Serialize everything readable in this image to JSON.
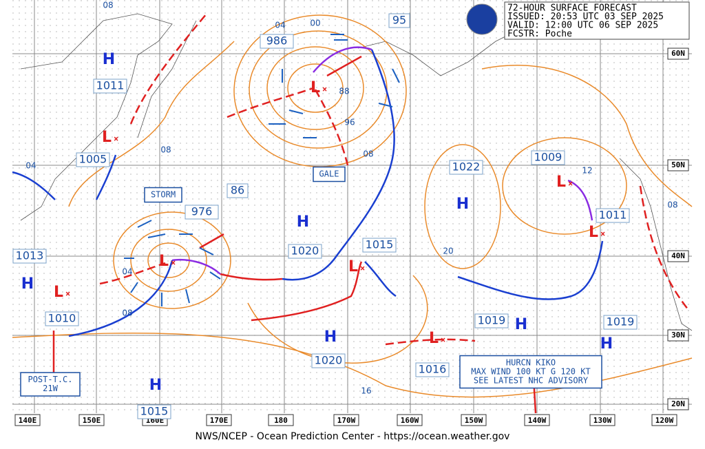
{
  "header": {
    "lines": [
      "72-HOUR SURFACE FORECAST",
      "ISSUED: 20:53 UTC 03 SEP 2025",
      "VALID:  12:00 UTC 06 SEP 2025",
      "FCSTR:  Poche"
    ]
  },
  "footer": "NWS/NCEP - Ocean Prediction Center - https://ocean.weather.gov",
  "lon_labels": [
    "140E",
    "150E",
    "160E",
    "170E",
    "180",
    "170W",
    "160W",
    "150W",
    "140W",
    "130W",
    "120W"
  ],
  "lat_labels": [
    "60N",
    "50N",
    "40N",
    "30N",
    "20N"
  ],
  "centers": [
    {
      "symbol": "H",
      "pressure": "1011"
    },
    {
      "symbol": "L",
      "pressure": "1005"
    },
    {
      "symbol": "L",
      "pressure": "986"
    },
    {
      "symbol": "H",
      "pressure": "1013"
    },
    {
      "symbol": "L",
      "pressure": "1010"
    },
    {
      "symbol": "L",
      "pressure": "976"
    },
    {
      "symbol": "H",
      "pressure": "1020"
    },
    {
      "symbol": "L",
      "pressure": "1015"
    },
    {
      "symbol": "H",
      "pressure": "1022"
    },
    {
      "symbol": "L",
      "pressure": "1009"
    },
    {
      "symbol": "L",
      "pressure": "1011"
    },
    {
      "symbol": "H",
      "pressure": "1019"
    },
    {
      "symbol": "H",
      "pressure": "1019"
    },
    {
      "symbol": "H",
      "pressure": "1020"
    },
    {
      "symbol": "L",
      "pressure": "1016"
    },
    {
      "symbol": "H",
      "pressure": "1015"
    }
  ],
  "forecast_pressures": [
    "95",
    "86"
  ],
  "isobar_labels": [
    "08",
    "04",
    "00",
    "88",
    "96",
    "08",
    "08",
    "04",
    "04",
    "08",
    "20",
    "12",
    "08",
    "16"
  ],
  "boxes": [
    {
      "lines": [
        "STORM"
      ]
    },
    {
      "lines": [
        "GALE"
      ]
    },
    {
      "lines": [
        "POST-T.C.",
        "21W"
      ]
    },
    {
      "lines": [
        "HURCN KIKO",
        "MAX WIND 100 KT G 120 KT",
        "SEE LATEST NHC ADVISORY"
      ]
    }
  ]
}
